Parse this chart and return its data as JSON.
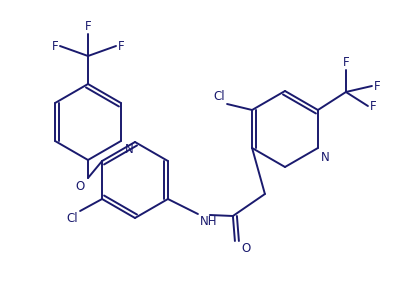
{
  "line_color": "#1a1a6e",
  "bg_color": "#ffffff",
  "font_size": 8.5,
  "lw": 1.4,
  "figsize": [
    4.0,
    3.07
  ],
  "dpi": 100,
  "xlim": [
    0,
    400
  ],
  "ylim": [
    0,
    307
  ]
}
